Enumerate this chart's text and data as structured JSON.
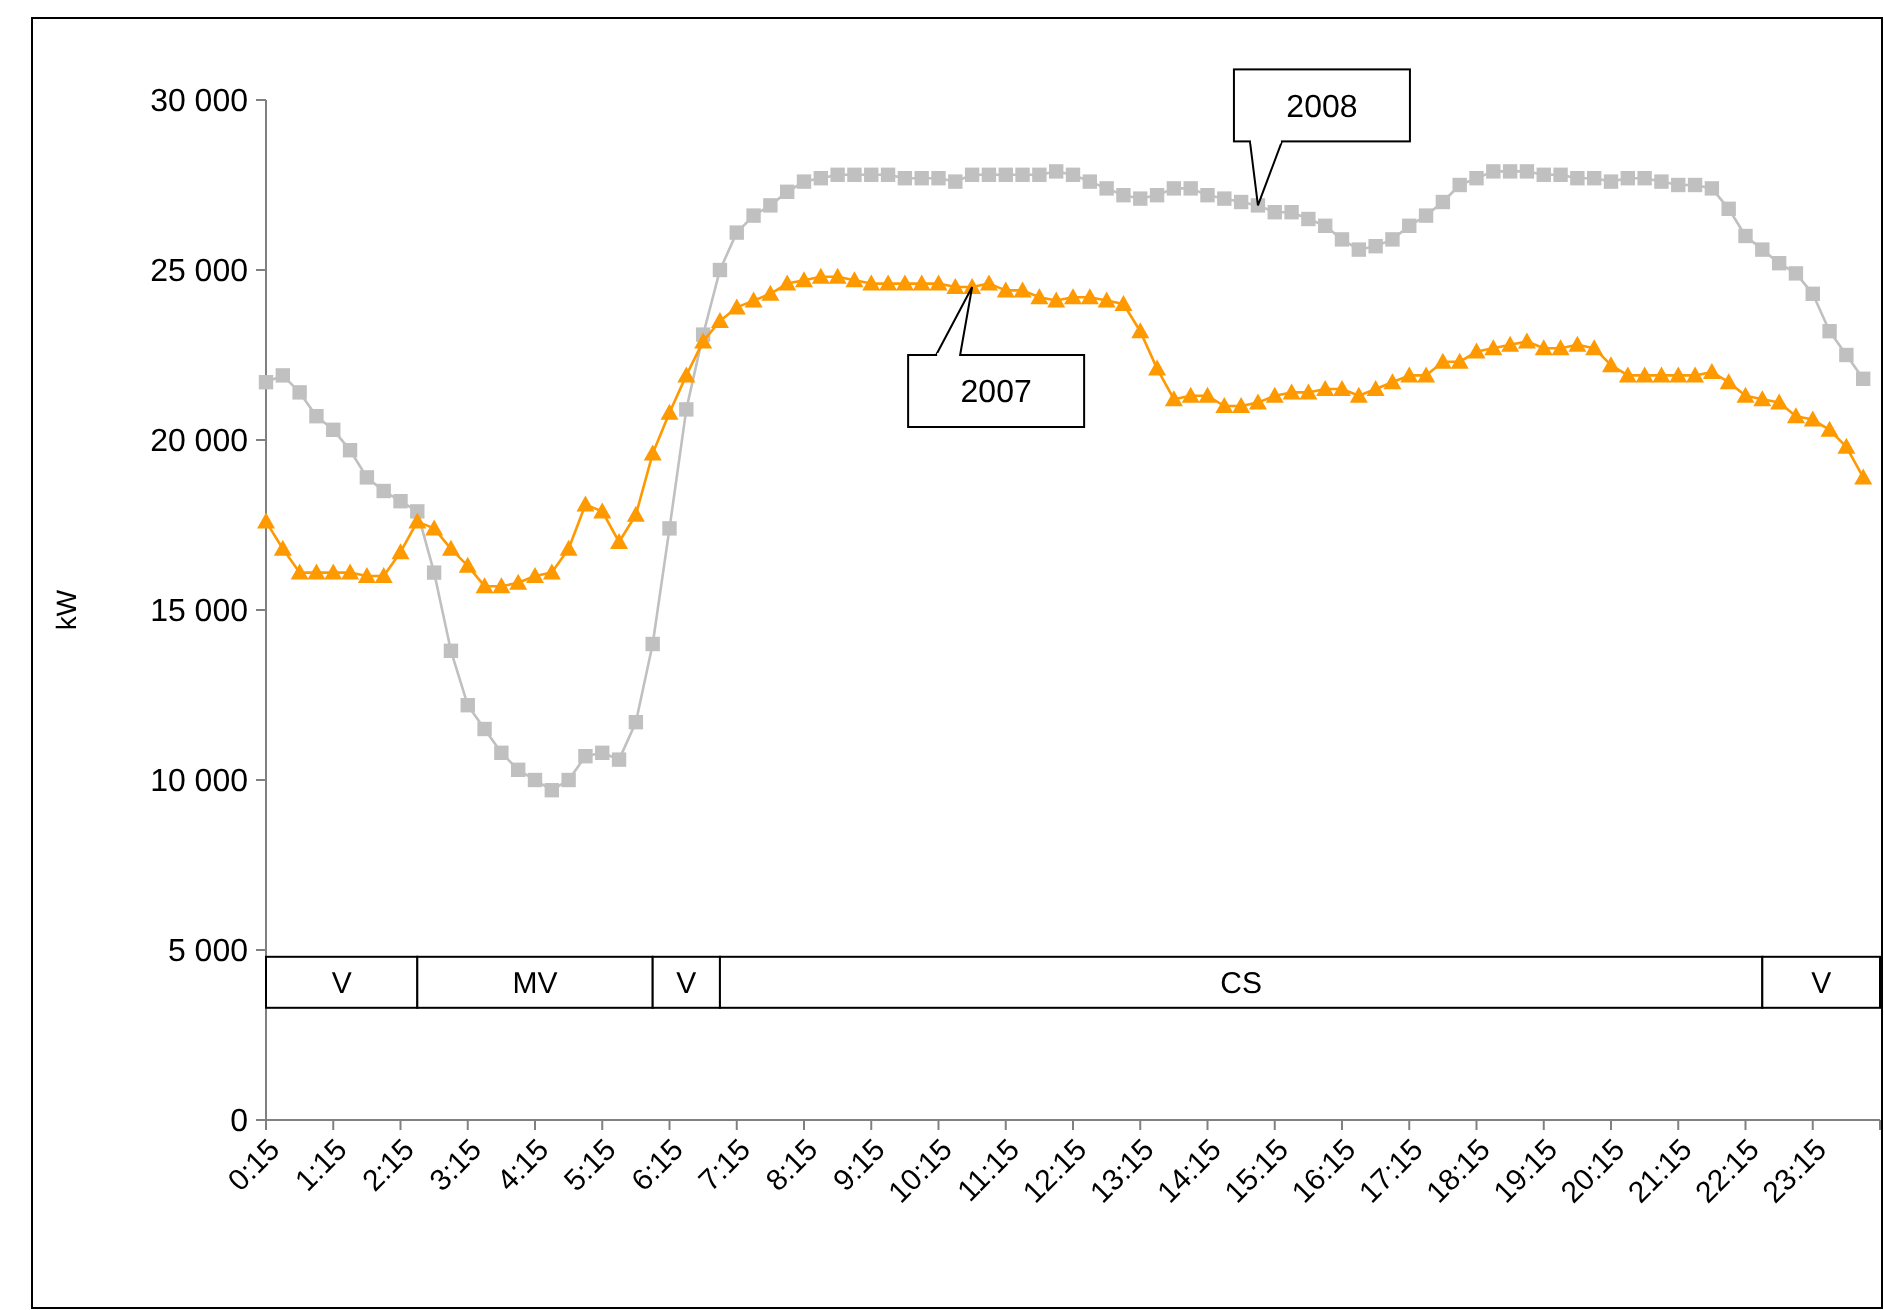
{
  "chart_data": {
    "type": "line",
    "ylabel": "kW",
    "x": [
      0.25,
      0.5,
      0.75,
      1,
      1.25,
      1.5,
      1.75,
      2,
      2.25,
      2.5,
      2.75,
      3,
      3.25,
      3.5,
      3.75,
      4,
      4.25,
      4.5,
      4.75,
      5,
      5.25,
      5.5,
      5.75,
      6,
      6.25,
      6.5,
      6.75,
      7,
      7.25,
      7.5,
      7.75,
      8,
      8.25,
      8.5,
      8.75,
      9,
      9.25,
      9.5,
      9.75,
      10,
      10.25,
      10.5,
      10.75,
      11,
      11.25,
      11.5,
      11.75,
      12,
      12.25,
      12.5,
      12.75,
      13,
      13.25,
      13.5,
      13.75,
      14,
      14.25,
      14.5,
      14.75,
      15,
      15.25,
      15.5,
      15.75,
      16,
      16.25,
      16.5,
      16.75,
      17,
      17.25,
      17.5,
      17.75,
      18,
      18.25,
      18.5,
      18.75,
      19,
      19.25,
      19.5,
      19.75,
      20,
      20.25,
      20.5,
      20.75,
      21,
      21.25,
      21.5,
      21.75,
      22,
      22.25,
      22.5,
      22.75,
      23,
      23.25,
      23.5,
      23.75,
      24
    ],
    "series": [
      {
        "color": "#c0c0c0",
        "marker": "square",
        "values": [
          21700,
          21900,
          21400,
          20700,
          20300,
          19700,
          18900,
          18500,
          18200,
          17900,
          16100,
          13800,
          12200,
          11500,
          10800,
          10300,
          10000,
          9700,
          10000,
          10700,
          10800,
          10600,
          11700,
          14000,
          17400,
          20900,
          23100,
          25000,
          26100,
          26600,
          26900,
          27300,
          27600,
          27700,
          27800,
          27800,
          27800,
          27800,
          27700,
          27700,
          27700,
          27600,
          27800,
          27800,
          27800,
          27800,
          27800,
          27900,
          27800,
          27600,
          27400,
          27200,
          27100,
          27200,
          27400,
          27400,
          27200,
          27100,
          27000,
          26900,
          26700,
          26700,
          26500,
          26300,
          25900,
          25600,
          25700,
          25900,
          26300,
          26600,
          27000,
          27500,
          27700,
          27900,
          27900,
          27900,
          27800,
          27800,
          27700,
          27700,
          27600,
          27700,
          27700,
          27600,
          27500,
          27500,
          27400,
          26800,
          26000,
          25600,
          25200,
          24900,
          24300,
          23200,
          22500,
          21800
        ]
      },
      {
        "color": "#ff9900",
        "marker": "triangle",
        "values": [
          17600,
          16800,
          16100,
          16100,
          16100,
          16100,
          16000,
          16000,
          16700,
          17600,
          17400,
          16800,
          16300,
          15700,
          15700,
          15800,
          16000,
          16100,
          16800,
          18100,
          17900,
          17000,
          17800,
          19600,
          20800,
          21900,
          22900,
          23500,
          23900,
          24100,
          24300,
          24600,
          24700,
          24800,
          24800,
          24700,
          24600,
          24600,
          24600,
          24600,
          24600,
          24500,
          24500,
          24600,
          24400,
          24400,
          24200,
          24100,
          24200,
          24200,
          24100,
          24000,
          23200,
          22100,
          21200,
          21300,
          21300,
          21000,
          21000,
          21100,
          21300,
          21400,
          21400,
          21500,
          21500,
          21300,
          21500,
          21700,
          21900,
          21900,
          22300,
          22300,
          22600,
          22700,
          22800,
          22900,
          22700,
          22700,
          22800,
          22700,
          22200,
          21900,
          21900,
          21900,
          21900,
          21900,
          22000,
          21700,
          21300,
          21200,
          21100,
          20700,
          20600,
          20300,
          19800,
          18900
        ]
      }
    ],
    "xlim": [
      0.25,
      24.25
    ],
    "xticks": [
      {
        "value": 0.25,
        "label": "0:15"
      },
      {
        "value": 1.25,
        "label": "1:15"
      },
      {
        "value": 2.25,
        "label": "2:15"
      },
      {
        "value": 3.25,
        "label": "3:15"
      },
      {
        "value": 4.25,
        "label": "4:15"
      },
      {
        "value": 5.25,
        "label": "5:15"
      },
      {
        "value": 6.25,
        "label": "6:15"
      },
      {
        "value": 7.25,
        "label": "7:15"
      },
      {
        "value": 8.25,
        "label": "8:15"
      },
      {
        "value": 9.25,
        "label": "9:15"
      },
      {
        "value": 10.25,
        "label": "10:15"
      },
      {
        "value": 11.25,
        "label": "11:15"
      },
      {
        "value": 12.25,
        "label": "12:15"
      },
      {
        "value": 13.25,
        "label": "13:15"
      },
      {
        "value": 14.25,
        "label": "14:15"
      },
      {
        "value": 15.25,
        "label": "15:15"
      },
      {
        "value": 16.25,
        "label": "16:15"
      },
      {
        "value": 17.25,
        "label": "17:15"
      },
      {
        "value": 18.25,
        "label": "18:15"
      },
      {
        "value": 19.25,
        "label": "19:15"
      },
      {
        "value": 20.25,
        "label": "20:15"
      },
      {
        "value": 21.25,
        "label": "21:15"
      },
      {
        "value": 22.25,
        "label": "22:15"
      },
      {
        "value": 23.25,
        "label": "23:15"
      },
      {
        "value": 24.25,
        "label": null
      }
    ],
    "ylim": [
      0,
      30000
    ],
    "yticks": [
      0,
      {
        "value": 5000,
        "label": "5 000"
      },
      {
        "value": 10000,
        "label": "10 000"
      },
      {
        "value": 15000,
        "label": "15 000"
      },
      {
        "value": 20000,
        "label": "20 000"
      },
      {
        "value": 25000,
        "label": "25 000"
      },
      {
        "value": 30000,
        "label": "30 000"
      }
    ],
    "bands": [
      {
        "axis": "x",
        "from": 0.25,
        "to": 2.5,
        "label": "V"
      },
      {
        "axis": "x",
        "from": 2.5,
        "to": 6,
        "label": "MV"
      },
      {
        "axis": "x",
        "from": 6,
        "to": 7,
        "label": "V"
      },
      {
        "axis": "x",
        "from": 7,
        "to": 22.5,
        "label": "CS"
      },
      {
        "axis": "x",
        "from": 22.5,
        "to": 24.25,
        "label": "V"
      }
    ],
    "annotations": [
      {
        "text": "2008",
        "x": 15,
        "y": 26900
      },
      {
        "text": "2007",
        "x": 10.75,
        "y": 24500
      }
    ]
  }
}
